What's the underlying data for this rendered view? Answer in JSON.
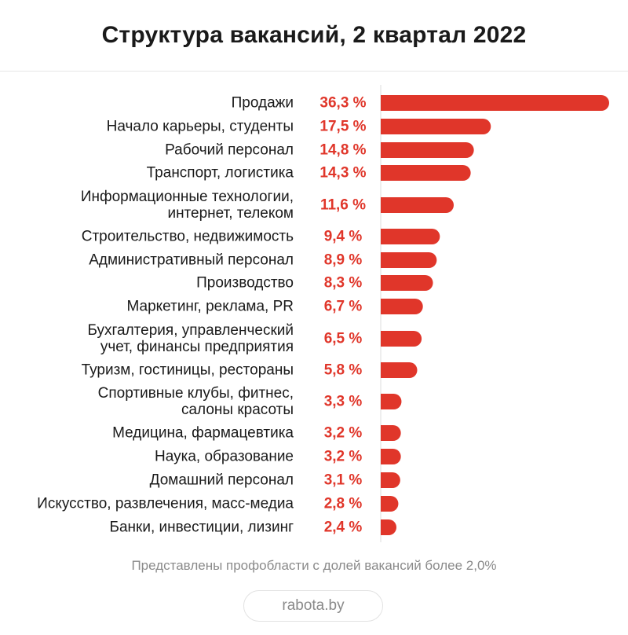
{
  "chart_data": {
    "type": "bar",
    "orientation": "horizontal",
    "title": "Структура вакансий, 2 квартал 2022",
    "categories": [
      [
        "Продажи"
      ],
      [
        "Начало карьеры, студенты"
      ],
      [
        "Рабочий персонал"
      ],
      [
        "Транспорт, логистика"
      ],
      [
        "Информационные технологии,",
        "интернет, телеком"
      ],
      [
        "Строительство, недвижимость"
      ],
      [
        "Административный персонал"
      ],
      [
        "Производство"
      ],
      [
        "Маркетинг, реклама, PR"
      ],
      [
        "Бухгалтерия, управленческий",
        "учет, финансы предприятия"
      ],
      [
        "Туризм, гостиницы, рестораны"
      ],
      [
        "Спортивные клубы, фитнес,",
        "салоны красоты"
      ],
      [
        "Медицина, фармацевтика"
      ],
      [
        "Наука, образование"
      ],
      [
        "Домашний персонал"
      ],
      [
        "Искусство, развлечения, масс-медиа"
      ],
      [
        "Банки, инвестиции, лизинг"
      ]
    ],
    "values": [
      36.3,
      17.5,
      14.8,
      14.3,
      11.6,
      9.4,
      8.9,
      8.3,
      6.7,
      6.5,
      5.8,
      3.3,
      3.2,
      3.2,
      3.1,
      2.8,
      2.4
    ],
    "value_labels": [
      "36,3 %",
      "17,5 %",
      "14,8 %",
      "14,3 %",
      "11,6 %",
      "9,4 %",
      "8,9 %",
      "8,3 %",
      "6,7 %",
      "6,5 %",
      "5,8 %",
      "3,3 %",
      "3,2 %",
      "3,2 %",
      "3,1 %",
      "2,8 %",
      "2,4 %"
    ],
    "xlim": [
      0,
      36.3
    ],
    "grid": false,
    "legend": "none"
  },
  "colors": {
    "bar": "#e0362a",
    "value_text": "#e0362a",
    "axis": "#dddddd"
  },
  "footnote": "Представлены профобласти с долей вакансий более 2,0%",
  "source": "rabota.by"
}
